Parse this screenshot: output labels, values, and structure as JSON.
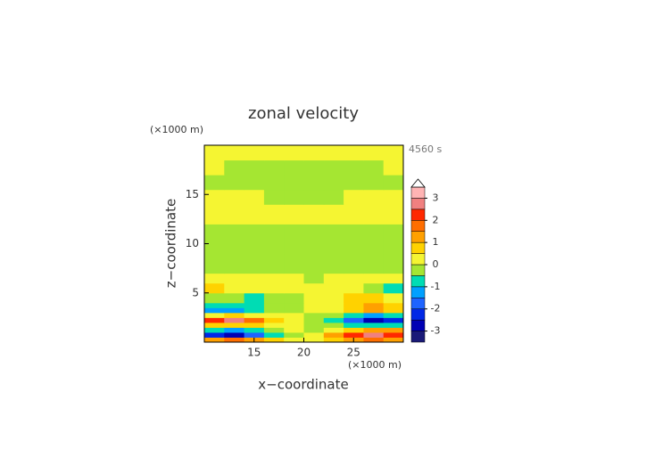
{
  "chart_data": {
    "type": "contour",
    "title": "zonal velocity",
    "x_label": "x−coordinate",
    "y_label": "z−coordinate",
    "x_unit": "(×1000 m)",
    "y_unit": "(×1000 m)",
    "time_label": "4560 s",
    "xlim": [
      10,
      30
    ],
    "ylim": [
      0,
      20
    ],
    "xticks": [
      15,
      20,
      25
    ],
    "yticks": [
      5,
      10,
      15
    ],
    "x_edges": [
      10,
      12,
      14,
      16,
      18,
      20,
      22,
      24,
      26,
      28,
      30
    ],
    "y_edges": [
      0,
      0.5,
      1,
      1.5,
      2,
      2.5,
      3,
      3.5,
      4,
      5,
      6,
      7,
      9,
      12,
      14,
      15.5,
      17,
      18.5,
      20
    ],
    "z": [
      [
        1.2,
        1.5,
        1.2,
        0.8,
        0.3,
        0.3,
        0.8,
        1.2,
        1.5,
        1.2
      ],
      [
        -2.5,
        -3,
        -2,
        -1,
        -0.3,
        0.3,
        1,
        2,
        2.8,
        2.3
      ],
      [
        -1,
        -1.3,
        -0.7,
        -0.3,
        0.1,
        -0.1,
        0.3,
        0.8,
        1.3,
        1
      ],
      [
        0.5,
        0.8,
        0.5,
        0.2,
        0.1,
        -0.1,
        -0.3,
        -0.6,
        -1,
        -0.6
      ],
      [
        2,
        2.6,
        1.8,
        0.8,
        0.2,
        -0.2,
        -0.8,
        -1.8,
        -2.8,
        -2.2
      ],
      [
        0.3,
        0.6,
        0.4,
        0.2,
        0.1,
        -0.1,
        -0.2,
        -0.6,
        -1.1,
        -0.8
      ],
      [
        -1.2,
        -1.3,
        -0.8,
        -0.3,
        -0.1,
        0.1,
        0.3,
        0.7,
        1,
        0.6
      ],
      [
        -0.6,
        -0.8,
        -0.7,
        -0.3,
        -0.1,
        0.1,
        0.3,
        0.8,
        1.1,
        0.7
      ],
      [
        -0.2,
        -0.4,
        -0.6,
        -0.3,
        -0.1,
        0.1,
        0.2,
        0.6,
        0.8,
        0.4
      ],
      [
        0.7,
        0.3,
        0.1,
        0.1,
        0.1,
        0.1,
        0.2,
        0.2,
        -0.3,
        -0.8
      ],
      [
        0.2,
        0.1,
        0.1,
        0.1,
        0.1,
        -0.1,
        0.1,
        0.1,
        0.1,
        0.1
      ],
      [
        -0.1,
        -0.1,
        -0.1,
        -0.1,
        -0.1,
        -0.1,
        -0.1,
        -0.1,
        -0.1,
        -0.1
      ],
      [
        -0.1,
        -0.1,
        -0.1,
        -0.1,
        -0.1,
        -0.1,
        -0.1,
        -0.1,
        -0.1,
        -0.1
      ],
      [
        0.1,
        0.1,
        0.1,
        0.1,
        0.1,
        0.1,
        0.1,
        0.1,
        0.1,
        0.1
      ],
      [
        0.1,
        0.1,
        0.1,
        -0.1,
        -0.1,
        -0.1,
        -0.1,
        0.1,
        0.1,
        0.1
      ],
      [
        -0.1,
        -0.1,
        -0.1,
        -0.1,
        -0.1,
        -0.1,
        -0.1,
        -0.1,
        -0.1,
        -0.1
      ],
      [
        0.1,
        -0.1,
        -0.1,
        -0.1,
        -0.1,
        -0.1,
        -0.1,
        -0.1,
        -0.1,
        0.1
      ],
      [
        0.1,
        0.1,
        0.1,
        0.1,
        0.1,
        0.1,
        0.1,
        0.1,
        0.1,
        0.1
      ]
    ],
    "colorbar": {
      "levels": [
        -3.5,
        -3,
        -2.5,
        -2,
        -1.5,
        -1,
        -0.5,
        0,
        0.5,
        1,
        1.5,
        2,
        2.5,
        3,
        3.5
      ],
      "colors": [
        "#1a1a78",
        "#0000b4",
        "#0028e6",
        "#1e64ff",
        "#00a0ff",
        "#00dcb4",
        "#a5e632",
        "#f5f532",
        "#ffd200",
        "#ffa000",
        "#ff6e00",
        "#ff2800",
        "#f08080",
        "#ffb4b4"
      ],
      "ticks": [
        -3,
        -2,
        -1,
        0,
        1,
        2,
        3
      ],
      "extend": "max"
    }
  }
}
